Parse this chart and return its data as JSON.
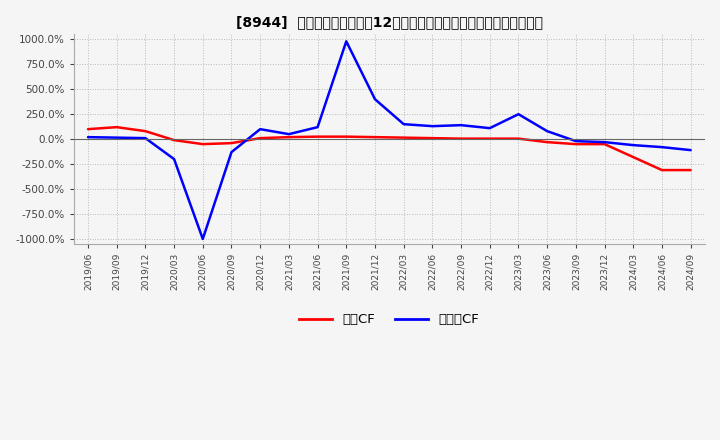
{
  "title": "[8944]  キャッシュフローの12か月移動合計の対前年同期増減率の推移",
  "ylim": [
    -1050,
    1050
  ],
  "yticks": [
    -1000,
    -750,
    -500,
    -250,
    0,
    250,
    500,
    750,
    1000
  ],
  "ytick_labels": [
    "-1000.0%",
    "-750.0%",
    "-500.0%",
    "-250.0%",
    "0.0%",
    "250.0%",
    "500.0%",
    "750.0%",
    "1000.0%"
  ],
  "legend_labels": [
    "営業CF",
    "フリーCF"
  ],
  "legend_colors": [
    "#ff0000",
    "#0000ff"
  ],
  "background_color": "#f5f5f5",
  "grid_color": "#aaaaaa",
  "x_dates": [
    "2019/06",
    "2019/09",
    "2019/12",
    "2020/03",
    "2020/06",
    "2020/09",
    "2020/12",
    "2021/03",
    "2021/06",
    "2021/09",
    "2021/12",
    "2022/03",
    "2022/06",
    "2022/09",
    "2022/12",
    "2023/03",
    "2023/06",
    "2023/09",
    "2023/12",
    "2024/03",
    "2024/06",
    "2024/09"
  ],
  "operating_cf": [
    100,
    120,
    80,
    -10,
    -50,
    -40,
    10,
    20,
    25,
    25,
    20,
    15,
    10,
    5,
    5,
    5,
    -30,
    -50,
    -50,
    -180,
    -310,
    -310
  ],
  "free_cf": [
    20,
    15,
    10,
    -200,
    -1000,
    -130,
    100,
    50,
    120,
    980,
    400,
    150,
    130,
    140,
    110,
    250,
    80,
    -20,
    -30,
    -60,
    -80,
    -110
  ]
}
